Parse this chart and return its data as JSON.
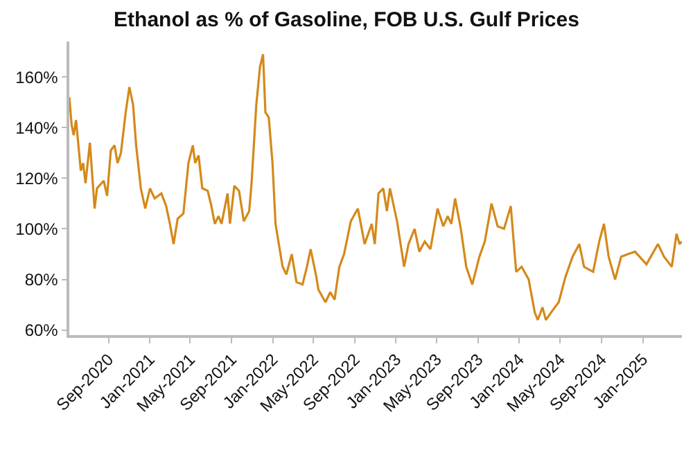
{
  "chart_data": {
    "type": "line",
    "title": "Ethanol as % of Gasoline, FOB U.S. Gulf Prices",
    "x": [
      "2020-05-08",
      "2020-05-15",
      "2020-05-21",
      "2020-05-28",
      "2020-06-11",
      "2020-06-18",
      "2020-06-25",
      "2020-07-08",
      "2020-07-22",
      "2020-07-29",
      "2020-08-18",
      "2020-08-28",
      "2020-09-08",
      "2020-09-19",
      "2020-09-28",
      "2020-10-08",
      "2020-10-22",
      "2020-11-02",
      "2020-11-13",
      "2020-11-22",
      "2020-12-06",
      "2020-12-19",
      "2021-01-02",
      "2021-01-16",
      "2021-02-05",
      "2021-02-19",
      "2021-03-02",
      "2021-03-13",
      "2021-03-25",
      "2021-04-11",
      "2021-04-26",
      "2021-05-09",
      "2021-05-16",
      "2021-05-26",
      "2021-06-06",
      "2021-06-22",
      "2021-07-03",
      "2021-07-13",
      "2021-07-24",
      "2021-08-02",
      "2021-08-20",
      "2021-08-27",
      "2021-09-09",
      "2021-09-23",
      "2021-10-07",
      "2021-10-23",
      "2021-10-30",
      "2021-11-13",
      "2021-11-24",
      "2021-12-03",
      "2021-12-10",
      "2021-12-20",
      "2021-12-31",
      "2022-01-09",
      "2022-01-20",
      "2022-01-30",
      "2022-02-10",
      "2022-02-26",
      "2022-03-12",
      "2022-03-30",
      "2022-04-12",
      "2022-04-23",
      "2022-05-10",
      "2022-05-16",
      "2022-06-06",
      "2022-06-20",
      "2022-07-03",
      "2022-07-17",
      "2022-07-31",
      "2022-08-20",
      "2022-09-10",
      "2022-09-30",
      "2022-10-21",
      "2022-10-30",
      "2022-11-10",
      "2022-11-24",
      "2022-12-05",
      "2022-12-14",
      "2023-01-04",
      "2023-01-25",
      "2023-02-07",
      "2023-02-25",
      "2023-03-11",
      "2023-03-27",
      "2023-04-13",
      "2023-05-04",
      "2023-05-21",
      "2023-06-03",
      "2023-06-14",
      "2023-06-25",
      "2023-07-12",
      "2023-07-28",
      "2023-08-15",
      "2023-09-05",
      "2023-09-21",
      "2023-10-11",
      "2023-10-29",
      "2023-11-17",
      "2023-12-07",
      "2023-12-23",
      "2024-01-08",
      "2024-01-29",
      "2024-02-16",
      "2024-02-25",
      "2024-03-10",
      "2024-03-20",
      "2024-04-10",
      "2024-04-27",
      "2024-05-17",
      "2024-06-07",
      "2024-06-27",
      "2024-07-11",
      "2024-08-07",
      "2024-08-25",
      "2024-09-08",
      "2024-09-22",
      "2024-10-11",
      "2024-10-29",
      "2024-11-18",
      "2024-12-09",
      "2025-01-12",
      "2025-02-15",
      "2025-03-05",
      "2025-03-28",
      "2025-04-11",
      "2025-04-20",
      "2025-04-27"
    ],
    "series": [
      {
        "color": "#d4891a",
        "values": [
          152,
          141,
          137,
          143,
          123,
          126,
          118,
          134,
          108,
          116,
          119,
          113,
          131,
          133,
          126,
          130,
          146,
          156,
          149,
          133,
          116,
          108,
          116,
          112,
          114,
          109,
          102,
          94,
          104,
          106,
          126,
          133,
          126,
          129,
          116,
          115,
          109,
          102,
          105,
          102,
          114,
          102,
          117,
          115,
          103,
          107,
          118,
          149,
          164,
          169,
          146,
          144,
          126,
          102,
          93,
          85,
          82,
          90,
          79,
          78,
          85,
          92,
          81,
          76,
          71,
          75,
          72,
          85,
          90,
          103,
          108,
          94,
          102,
          94,
          114,
          116,
          107,
          116,
          103,
          85,
          94,
          100,
          91,
          95,
          92,
          108,
          101,
          105,
          102,
          112,
          100,
          85,
          78,
          89,
          95,
          110,
          101,
          100,
          109,
          83,
          85,
          80,
          67,
          64,
          69,
          64,
          68,
          71,
          81,
          89,
          94,
          85,
          83,
          95,
          102,
          89,
          80,
          89,
          90,
          91,
          86,
          94,
          89,
          85,
          98,
          94,
          95
        ]
      }
    ],
    "xlim": [
      "2020-05-08",
      "2025-04-27"
    ],
    "xticks": [
      {
        "value": "2020-09-01",
        "label": "Sep-2020"
      },
      {
        "value": "2021-01-01",
        "label": "Jan-2021"
      },
      {
        "value": "2021-05-01",
        "label": "May-2021"
      },
      {
        "value": "2021-09-01",
        "label": "Sep-2021"
      },
      {
        "value": "2022-01-01",
        "label": "Jan-2022"
      },
      {
        "value": "2022-05-01",
        "label": "May-2022"
      },
      {
        "value": "2022-09-01",
        "label": "Sep-2022"
      },
      {
        "value": "2023-01-01",
        "label": "Jan-2023"
      },
      {
        "value": "2023-05-01",
        "label": "May-2023"
      },
      {
        "value": "2023-09-01",
        "label": "Sep-2023"
      },
      {
        "value": "2024-01-01",
        "label": "Jan-2024"
      },
      {
        "value": "2024-05-01",
        "label": "May-2024"
      },
      {
        "value": "2024-09-01",
        "label": "Sep-2024"
      },
      {
        "value": "2025-01-01",
        "label": "Jan-2025"
      }
    ],
    "ylim": [
      58,
      174
    ],
    "yticks": [
      {
        "value": 60,
        "label": "60%"
      },
      {
        "value": 80,
        "label": "80%"
      },
      {
        "value": 100,
        "label": "100%"
      },
      {
        "value": 120,
        "label": "120%"
      },
      {
        "value": 140,
        "label": "140%"
      },
      {
        "value": 160,
        "label": "160%"
      }
    ],
    "grid": false,
    "marker": "none",
    "line_style": "solid"
  }
}
